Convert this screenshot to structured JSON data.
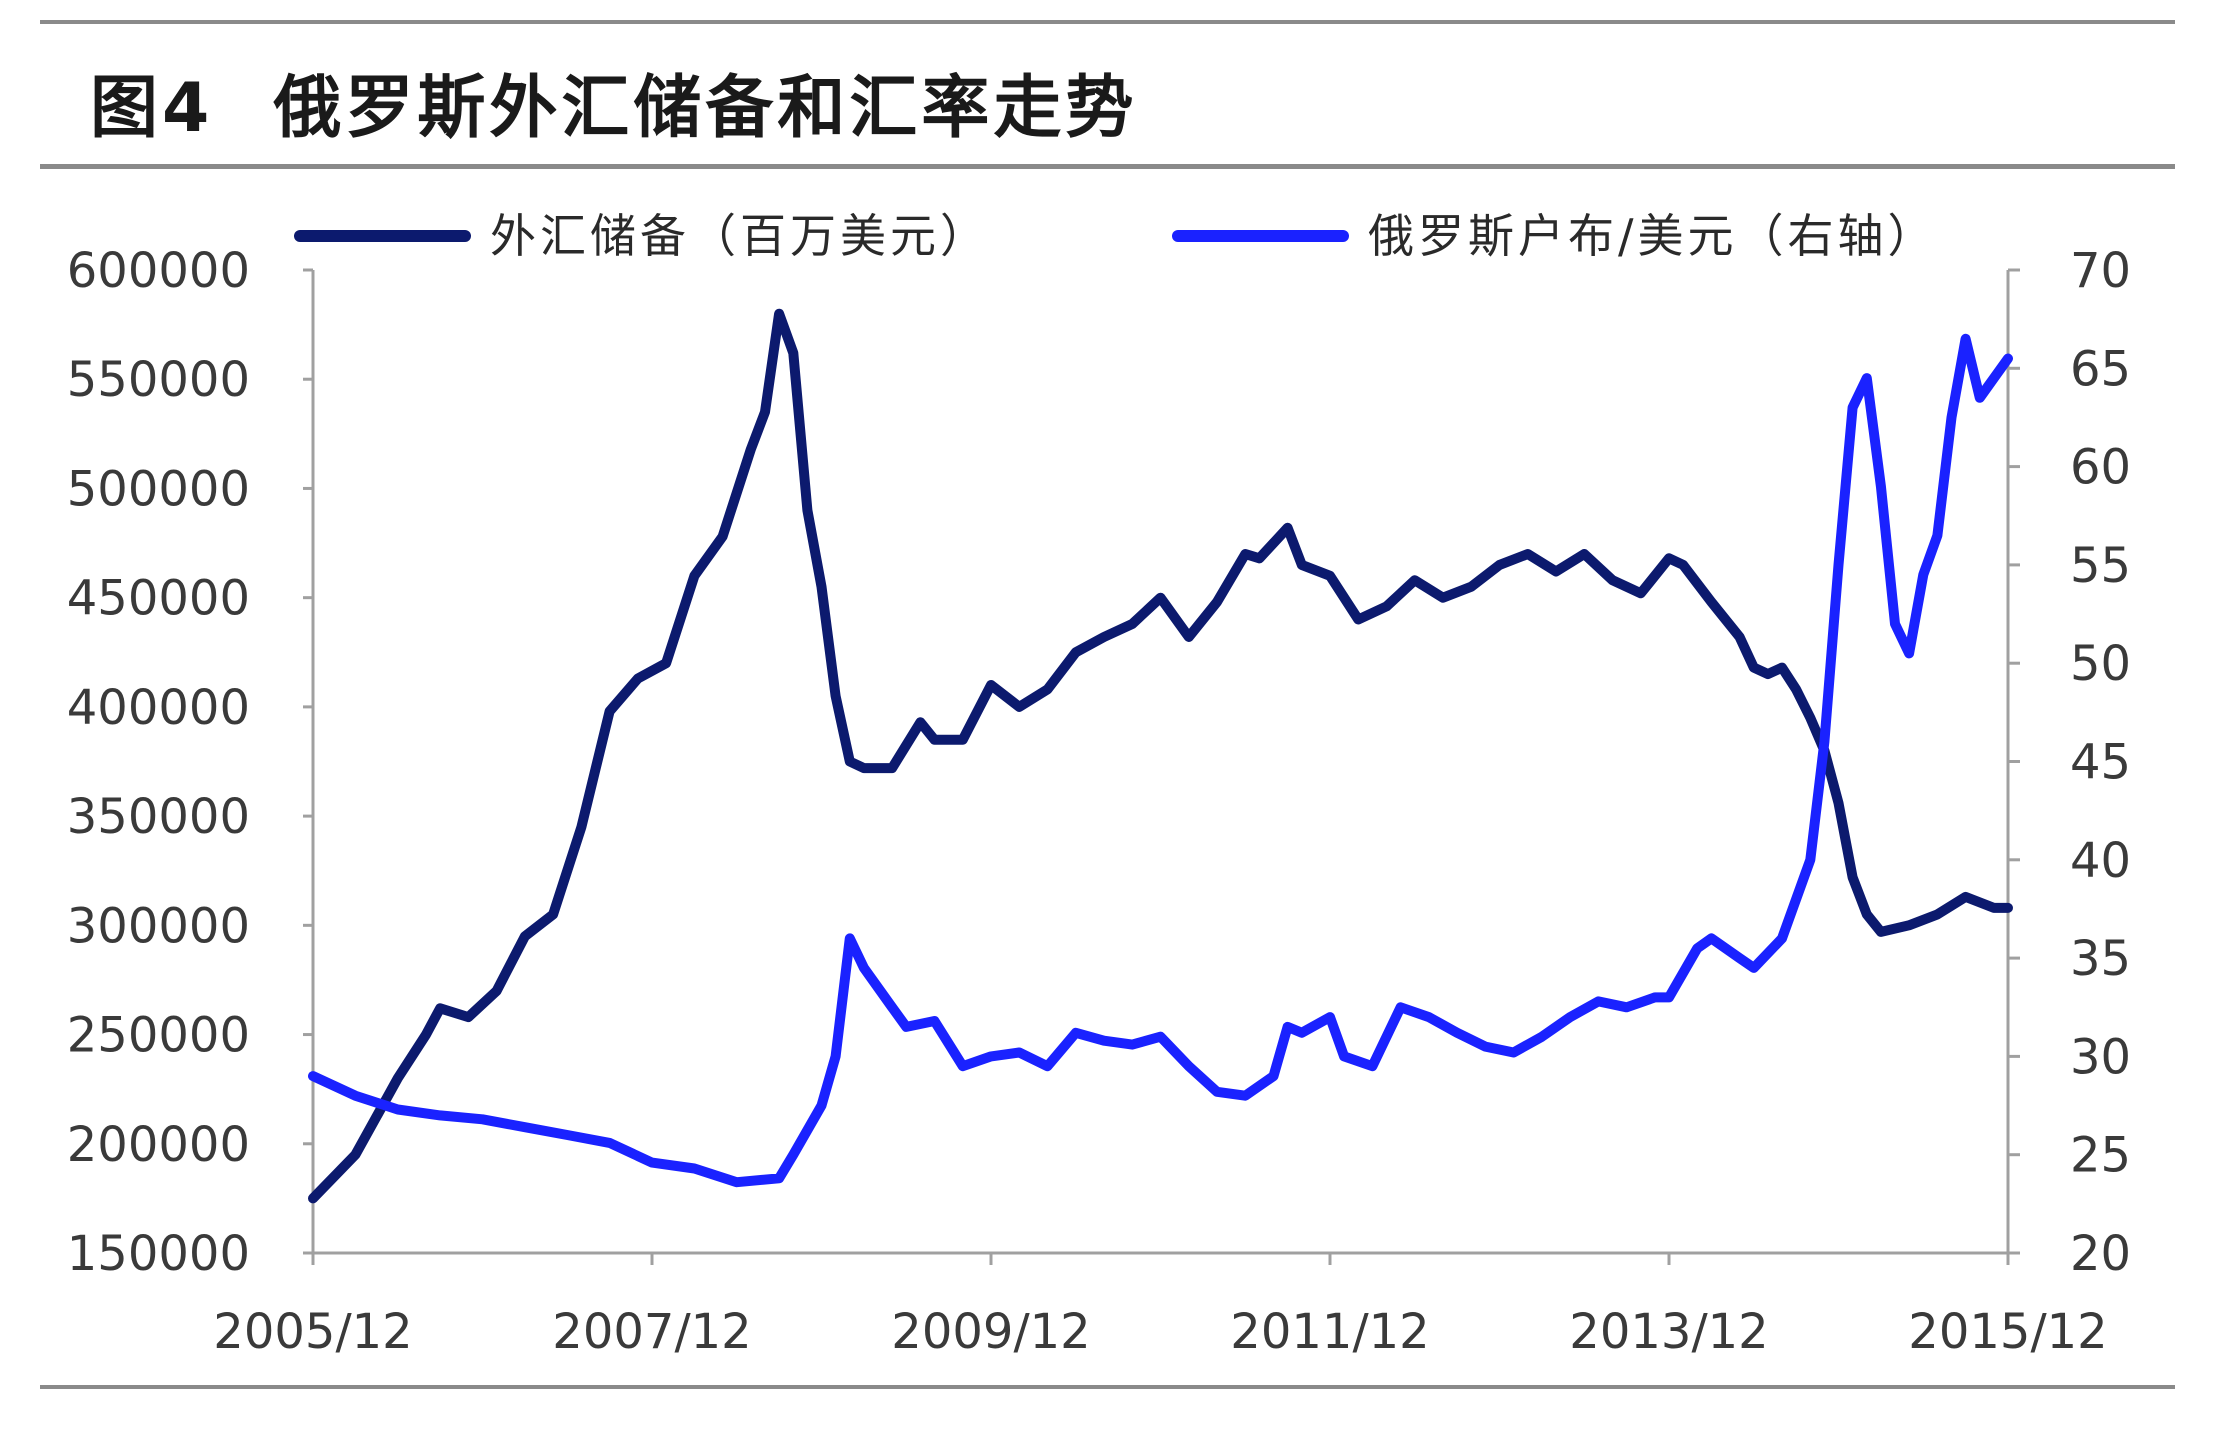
{
  "figure": {
    "label": "图4",
    "title": "俄罗斯外汇储备和汇率走势"
  },
  "colors": {
    "reserves": "#0c1a6e",
    "rub": "#1a22ff",
    "axis": "#a0a0a0",
    "tick_text": "#3a3a3a",
    "rule": "#8a8a8a"
  },
  "chart_data": {
    "type": "line",
    "x_tick_labels": [
      "2005/12",
      "2007/12",
      "2009/12",
      "2011/12",
      "2013/12",
      "2015/12"
    ],
    "x_range": [
      "2005/12",
      "2015/12"
    ],
    "y_left": {
      "range": [
        150000,
        600000
      ],
      "tick_labels": [
        "600000",
        "550000",
        "500000",
        "450000",
        "400000",
        "350000",
        "300000",
        "250000",
        "200000",
        "150000"
      ]
    },
    "y_right": {
      "range": [
        20,
        70
      ],
      "tick_labels": [
        "70",
        "65",
        "60",
        "55",
        "50",
        "45",
        "40",
        "35",
        "30",
        "25",
        "20"
      ]
    },
    "legend_position": "top",
    "grid": false,
    "series": [
      {
        "name": "外汇储备（百万美元）",
        "axis": "left",
        "points": [
          [
            "2005/12",
            175000
          ],
          [
            "2006/03",
            195000
          ],
          [
            "2006/06",
            230000
          ],
          [
            "2006/08",
            250000
          ],
          [
            "2006/09",
            262000
          ],
          [
            "2006/11",
            258000
          ],
          [
            "2007/01",
            270000
          ],
          [
            "2007/03",
            295000
          ],
          [
            "2007/05",
            305000
          ],
          [
            "2007/07",
            345000
          ],
          [
            "2007/09",
            398000
          ],
          [
            "2007/11",
            413000
          ],
          [
            "2008/01",
            420000
          ],
          [
            "2008/03",
            460000
          ],
          [
            "2008/05",
            478000
          ],
          [
            "2008/07",
            518000
          ],
          [
            "2008/08",
            535000
          ],
          [
            "2008/09",
            580000
          ],
          [
            "2008/10",
            562000
          ],
          [
            "2008/11",
            490000
          ],
          [
            "2008/12",
            455000
          ],
          [
            "2009/01",
            405000
          ],
          [
            "2009/02",
            375000
          ],
          [
            "2009/03",
            372000
          ],
          [
            "2009/05",
            372000
          ],
          [
            "2009/07",
            393000
          ],
          [
            "2009/08",
            385000
          ],
          [
            "2009/10",
            385000
          ],
          [
            "2009/12",
            410000
          ],
          [
            "2010/02",
            400000
          ],
          [
            "2010/04",
            408000
          ],
          [
            "2010/06",
            425000
          ],
          [
            "2010/08",
            432000
          ],
          [
            "2010/10",
            438000
          ],
          [
            "2010/12",
            450000
          ],
          [
            "2011/02",
            432000
          ],
          [
            "2011/04",
            448000
          ],
          [
            "2011/06",
            470000
          ],
          [
            "2011/07",
            468000
          ],
          [
            "2011/09",
            482000
          ],
          [
            "2011/10",
            465000
          ],
          [
            "2011/12",
            460000
          ],
          [
            "2012/02",
            440000
          ],
          [
            "2012/04",
            446000
          ],
          [
            "2012/06",
            458000
          ],
          [
            "2012/08",
            450000
          ],
          [
            "2012/10",
            455000
          ],
          [
            "2012/12",
            465000
          ],
          [
            "2013/02",
            470000
          ],
          [
            "2013/04",
            462000
          ],
          [
            "2013/06",
            470000
          ],
          [
            "2013/08",
            458000
          ],
          [
            "2013/10",
            452000
          ],
          [
            "2013/12",
            468000
          ],
          [
            "2014/01",
            465000
          ],
          [
            "2014/03",
            448000
          ],
          [
            "2014/05",
            432000
          ],
          [
            "2014/06",
            418000
          ],
          [
            "2014/07",
            415000
          ],
          [
            "2014/08",
            418000
          ],
          [
            "2014/09",
            408000
          ],
          [
            "2014/10",
            395000
          ],
          [
            "2014/11",
            380000
          ],
          [
            "2014/12",
            356000
          ],
          [
            "2015/01",
            322000
          ],
          [
            "2015/02",
            305000
          ],
          [
            "2015/03",
            297000
          ],
          [
            "2015/05",
            300000
          ],
          [
            "2015/07",
            305000
          ],
          [
            "2015/09",
            313000
          ],
          [
            "2015/11",
            308000
          ],
          [
            "2015/12",
            308000
          ]
        ]
      },
      {
        "name": "俄罗斯户布/美元（右轴）",
        "axis": "right",
        "points": [
          [
            "2005/12",
            29.0
          ],
          [
            "2006/03",
            28.0
          ],
          [
            "2006/06",
            27.3
          ],
          [
            "2006/09",
            27.0
          ],
          [
            "2006/12",
            26.8
          ],
          [
            "2007/03",
            26.4
          ],
          [
            "2007/06",
            26.0
          ],
          [
            "2007/09",
            25.6
          ],
          [
            "2007/12",
            24.6
          ],
          [
            "2008/03",
            24.3
          ],
          [
            "2008/06",
            23.6
          ],
          [
            "2008/09",
            23.8
          ],
          [
            "2008/10",
            25.0
          ],
          [
            "2008/12",
            27.5
          ],
          [
            "2009/01",
            30.0
          ],
          [
            "2009/02",
            36.0
          ],
          [
            "2009/03",
            34.5
          ],
          [
            "2009/05",
            32.5
          ],
          [
            "2009/06",
            31.5
          ],
          [
            "2009/08",
            31.8
          ],
          [
            "2009/10",
            29.5
          ],
          [
            "2009/12",
            30.0
          ],
          [
            "2010/02",
            30.2
          ],
          [
            "2010/04",
            29.5
          ],
          [
            "2010/06",
            31.2
          ],
          [
            "2010/08",
            30.8
          ],
          [
            "2010/10",
            30.6
          ],
          [
            "2010/12",
            31.0
          ],
          [
            "2011/02",
            29.5
          ],
          [
            "2011/04",
            28.2
          ],
          [
            "2011/06",
            28.0
          ],
          [
            "2011/08",
            29.0
          ],
          [
            "2011/09",
            31.5
          ],
          [
            "2011/10",
            31.2
          ],
          [
            "2011/12",
            32.0
          ],
          [
            "2012/01",
            30.0
          ],
          [
            "2012/03",
            29.5
          ],
          [
            "2012/05",
            32.5
          ],
          [
            "2012/07",
            32.0
          ],
          [
            "2012/09",
            31.2
          ],
          [
            "2012/11",
            30.5
          ],
          [
            "2013/01",
            30.2
          ],
          [
            "2013/03",
            31.0
          ],
          [
            "2013/05",
            32.0
          ],
          [
            "2013/07",
            32.8
          ],
          [
            "2013/09",
            32.5
          ],
          [
            "2013/11",
            33.0
          ],
          [
            "2013/12",
            33.0
          ],
          [
            "2014/02",
            35.5
          ],
          [
            "2014/03",
            36.0
          ],
          [
            "2014/05",
            35.0
          ],
          [
            "2014/06",
            34.5
          ],
          [
            "2014/08",
            36.0
          ],
          [
            "2014/10",
            40.0
          ],
          [
            "2014/11",
            46.0
          ],
          [
            "2014/12",
            55.0
          ],
          [
            "2015/01",
            63.0
          ],
          [
            "2015/02",
            64.5
          ],
          [
            "2015/03",
            59.0
          ],
          [
            "2015/04",
            52.0
          ],
          [
            "2015/05",
            50.5
          ],
          [
            "2015/06",
            54.5
          ],
          [
            "2015/07",
            56.5
          ],
          [
            "2015/08",
            62.5
          ],
          [
            "2015/09",
            66.5
          ],
          [
            "2015/10",
            63.5
          ],
          [
            "2015/11",
            64.5
          ],
          [
            "2015/12",
            65.5
          ]
        ]
      }
    ]
  }
}
